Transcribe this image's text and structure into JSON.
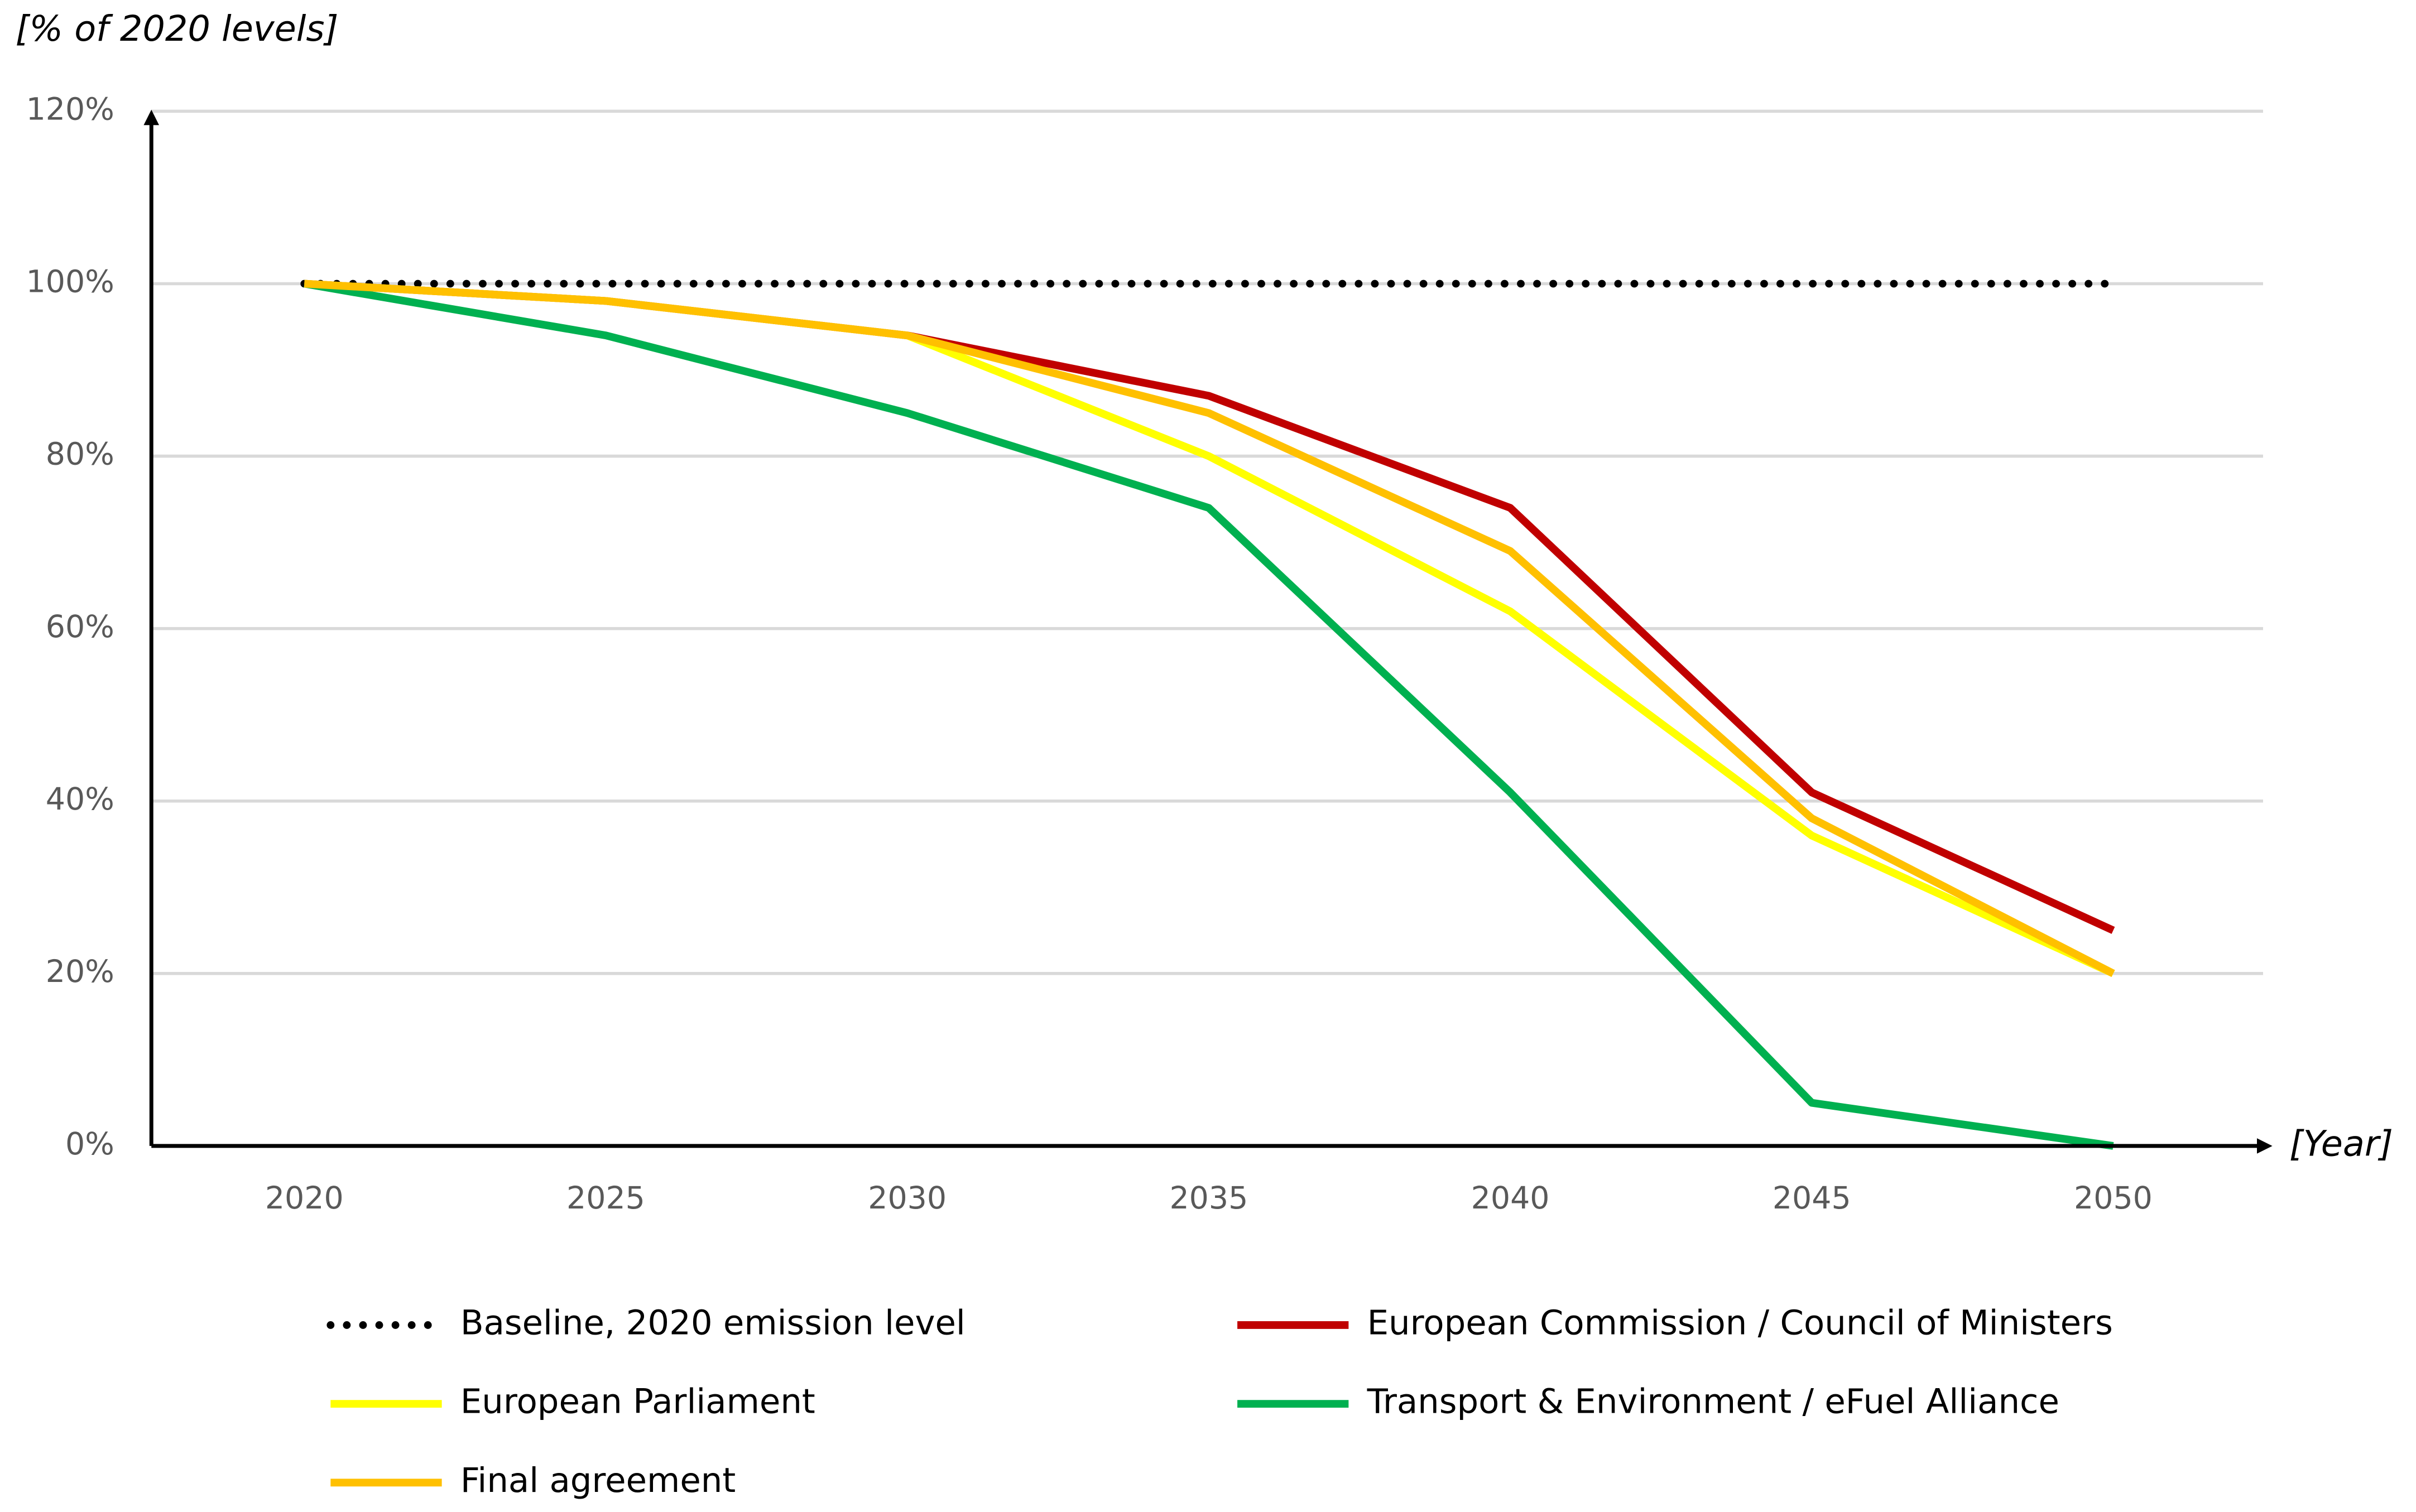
{
  "chart_data": {
    "type": "line",
    "y_label": "[% of 2020 levels]",
    "x_label": "[Year]",
    "categories": [
      "2020",
      "2025",
      "2030",
      "2035",
      "2040",
      "2045",
      "2050"
    ],
    "series": [
      {
        "name": "Baseline, 2020 emission level",
        "color": "#000000",
        "dotted": true,
        "values": [
          100,
          100,
          100,
          100,
          100,
          100,
          100
        ]
      },
      {
        "name": "European Commission / Council of Ministers",
        "color": "#c00000",
        "values": [
          100,
          98,
          94,
          87,
          74,
          41,
          25
        ]
      },
      {
        "name": "European Parliament",
        "color": "#ffff00",
        "values": [
          100,
          98,
          94,
          80,
          62,
          36,
          20
        ]
      },
      {
        "name": "Transport & Environment / eFuel Alliance",
        "color": "#00b050",
        "values": [
          100,
          94,
          85,
          74,
          41,
          5,
          0
        ]
      },
      {
        "name": "Final agreement",
        "color": "#ffc000",
        "values": [
          100,
          98,
          94,
          85,
          69,
          38,
          20
        ]
      }
    ],
    "ylim": [
      0,
      120
    ],
    "yticks": [
      {
        "value": 0,
        "label": "0%"
      },
      {
        "value": 20,
        "label": "20%"
      },
      {
        "value": 40,
        "label": "40%"
      },
      {
        "value": 60,
        "label": "60%"
      },
      {
        "value": 80,
        "label": "80%"
      },
      {
        "value": 100,
        "label": "100%"
      },
      {
        "value": 120,
        "label": "120%"
      }
    ],
    "grid": true
  }
}
